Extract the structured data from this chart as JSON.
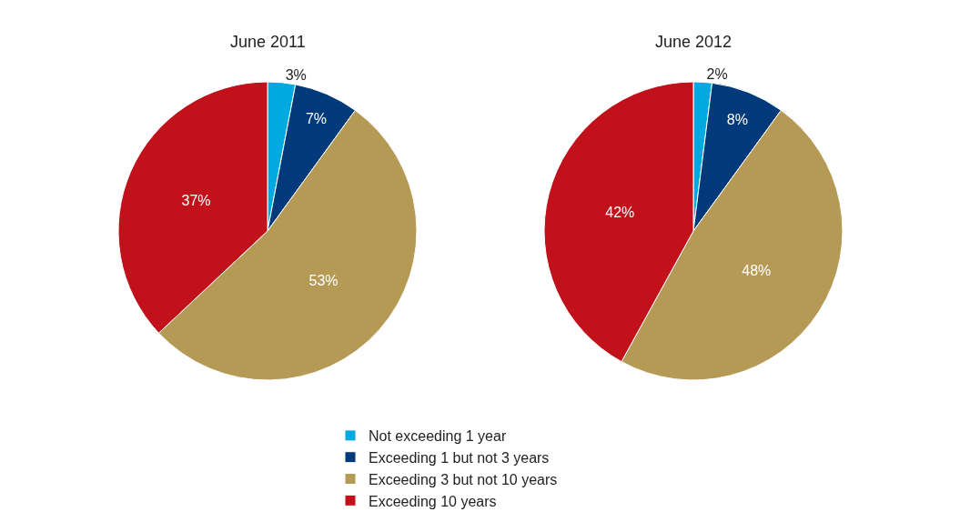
{
  "chart_data": [
    {
      "type": "pie",
      "title": "June 2011",
      "categories": [
        "Not exceeding 1 year",
        "Exceeding 1 but not 3 years",
        "Exceeding 3 but not 10 years",
        "Exceeding 10 years"
      ],
      "values": [
        3,
        7,
        53,
        37
      ],
      "value_labels": [
        "3%",
        "7%",
        "53%",
        "37%"
      ],
      "colors": [
        "#00a9e0",
        "#003a7a",
        "#b59a55",
        "#c1121c"
      ],
      "legend": "bottom"
    },
    {
      "type": "pie",
      "title": "June 2012",
      "categories": [
        null,
        null,
        null,
        null
      ],
      "values": [
        2,
        8,
        48,
        42
      ],
      "value_labels": [
        "2%",
        "8%",
        "48%",
        "42%"
      ],
      "colors": [
        "#00a9e0",
        "#003a7a",
        "#b59a55",
        "#c1121c"
      ]
    }
  ]
}
